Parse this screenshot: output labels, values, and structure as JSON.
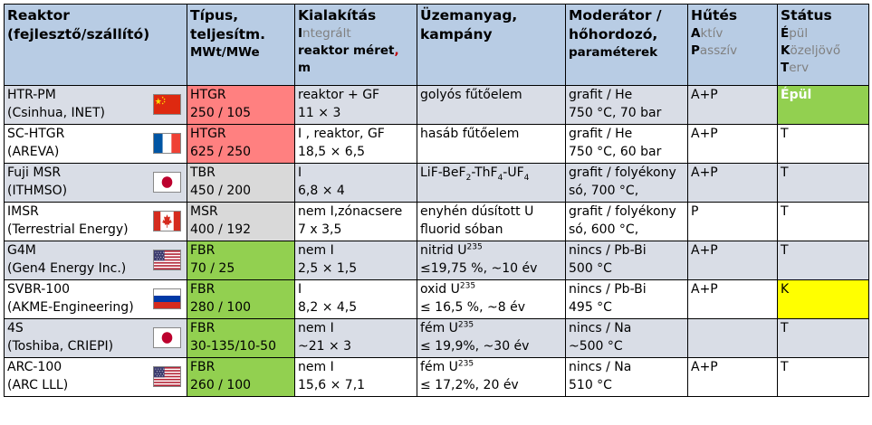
{
  "headers": {
    "reactor": [
      "Reaktor",
      "(fejlesztő/szállító)"
    ],
    "type": [
      "Típus,",
      "teljesítm.",
      "MWt/MWe"
    ],
    "design": {
      "title": "Kialakítás",
      "integr_first": "I",
      "integr_rest": "ntegrált",
      "size_label": "reaktor méret",
      "size_comma": ",",
      "size_unit": "m"
    },
    "fuel": [
      "Üzemanyag,",
      "kampány"
    ],
    "moderator": [
      "Moderátor /",
      "hőhordozó,",
      "paraméterek"
    ],
    "cooling": {
      "title": "Hűtés",
      "active_first": "A",
      "active_rest": "ktív",
      "passive_first": "P",
      "passive_rest": "asszív"
    },
    "status": {
      "title": "Státus",
      "build_first": "É",
      "build_rest": "pül",
      "near_first": "K",
      "near_rest": "özeljövő",
      "plan_first": "T",
      "plan_rest": "erv"
    }
  },
  "rows": [
    {
      "name": "HTR-PM",
      "vendor": "(Csinhua, INET)",
      "flag": "china-flag",
      "type": "HTGR",
      "power": "250 / 105",
      "design1": "reaktor + GF",
      "design2": "11 × 3",
      "fuel1": "golyós fűtőelem",
      "fuel2": "",
      "mod1": "grafit / He",
      "mod2": "750 °C, 70 bar",
      "cool": "A+P",
      "status": "Épül"
    },
    {
      "name": "SC-HTGR",
      "vendor": "(AREVA)",
      "flag": "france-flag",
      "type": "HTGR",
      "power": "625 / 250",
      "design1": "I , reaktor, GF",
      "design2": "18,5 × 6,5",
      "fuel1": "hasáb fűtőelem",
      "fuel2": "",
      "mod1": "grafit / He",
      "mod2": "750 °C, 60 bar",
      "cool": "A+P",
      "status": "T"
    },
    {
      "name": "Fuji MSR",
      "vendor": "(ITHMSO)",
      "flag": "japan-flag",
      "type": "TBR",
      "power": "450 / 200",
      "design1": "I",
      "design2": "6,8 × 4",
      "fuel1": "LiF-BeF2-ThF4-UF4",
      "fuel2": "",
      "mod1": "grafit / folyékony",
      "mod2": "só, 700 °C,",
      "cool": "A+P",
      "status": "T"
    },
    {
      "name": "IMSR",
      "vendor": "(Terrestrial Energy)",
      "flag": "canada-flag",
      "type": "MSR",
      "power": "400 / 192",
      "design1": "nem I,zónacsere",
      "design2": "7 x 3,5",
      "fuel1": "enyhén dúsított U",
      "fuel2": "fluorid sóban",
      "mod1": "grafit / folyékony",
      "mod2": "só, 600 °C,",
      "cool": "P",
      "status": "T"
    },
    {
      "name": "G4M",
      "vendor": "(Gen4 Energy Inc.)",
      "flag": "usa-flag",
      "type": "FBR",
      "power": "70 / 25",
      "design1": "nem I",
      "design2": "2,5 × 1,5",
      "fuel1": "nitrid U235",
      "fuel2": "≤19,75 %, ~10 év",
      "mod1": "nincs / Pb-Bi",
      "mod2": "500 °C",
      "cool": "A+P",
      "status": "T"
    },
    {
      "name": "SVBR-100",
      "vendor": "(AKME-Engineering)",
      "flag": "russia-flag",
      "type": "FBR",
      "power": "280 / 100",
      "design1": "I",
      "design2": "8,2 × 4,5",
      "fuel1": "oxid U235",
      "fuel2": "≤ 16,5 %, ~8 év",
      "mod1": "nincs / Pb-Bi",
      "mod2": "495 °C",
      "cool": "A+P",
      "status": "K"
    },
    {
      "name": "4S",
      "vendor": "(Toshiba, CRIEPI)",
      "flag": "japan-flag",
      "type": "FBR",
      "power": "30-135/10-50",
      "design1": "nem I",
      "design2": "~21 × 3",
      "fuel1": "fém U235",
      "fuel2": "≤ 19,9%, ~30 év",
      "mod1": "nincs / Na",
      "mod2": "~500 °C",
      "cool": "",
      "status": "T"
    },
    {
      "name": "ARC-100",
      "vendor": "(ARC LLL)",
      "flag": "usa-flag",
      "type": "FBR",
      "power": "260 / 100",
      "design1": "nem I",
      "design2": "15,6 × 7,1",
      "fuel1": "fém U235",
      "fuel2": "≤ 17,2%, 20 év",
      "mod1": "nincs / Na",
      "mod2": "510 °C",
      "cool": "A+P",
      "status": "T"
    }
  ],
  "colors": {
    "header": "#b8cce4",
    "row_odd": "#d9dde6",
    "htgr": "#ff8080",
    "msr": "#d9d9d9",
    "fbr": "#92d050",
    "status_build": "#92d050",
    "status_near": "#ffff00"
  }
}
